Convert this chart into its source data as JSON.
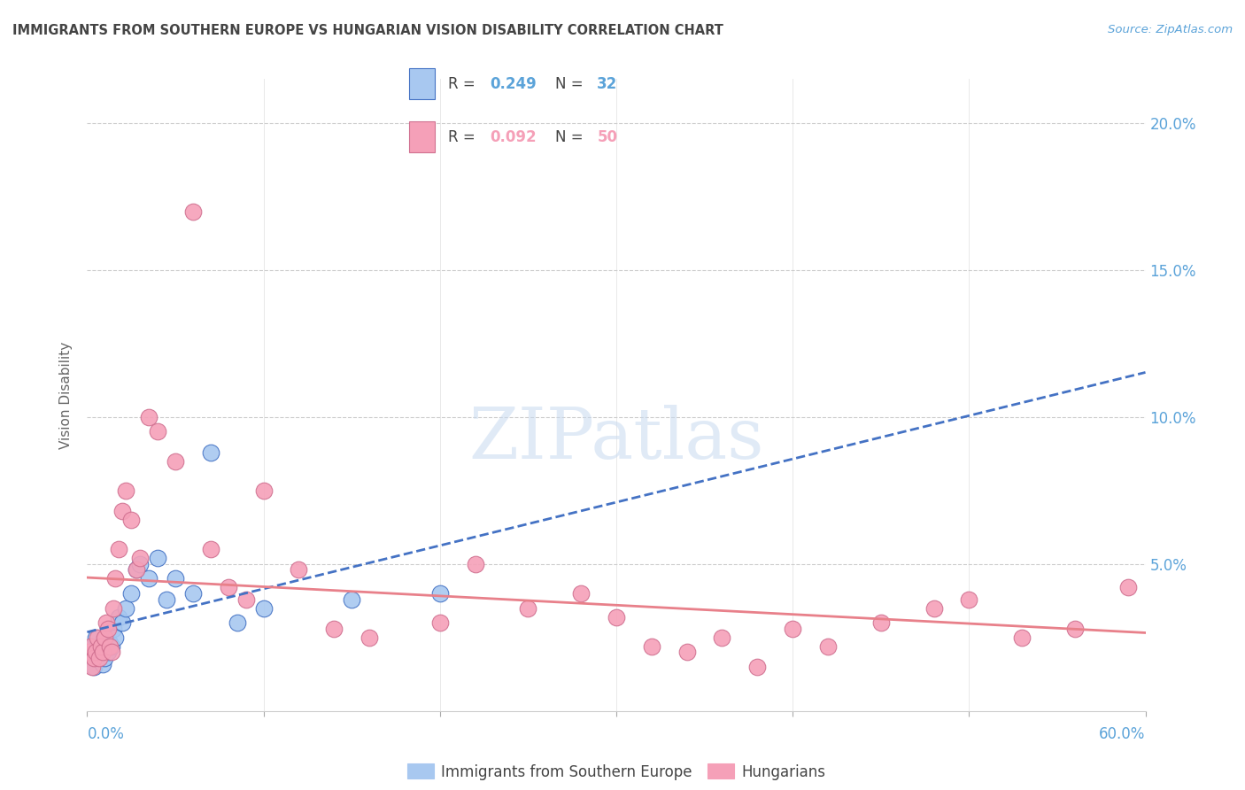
{
  "title": "IMMIGRANTS FROM SOUTHERN EUROPE VS HUNGARIAN VISION DISABILITY CORRELATION CHART",
  "source": "Source: ZipAtlas.com",
  "ylabel": "Vision Disability",
  "y_ticks": [
    0.0,
    0.05,
    0.1,
    0.15,
    0.2
  ],
  "y_tick_labels": [
    "",
    "5.0%",
    "10.0%",
    "15.0%",
    "20.0%"
  ],
  "xlim": [
    0.0,
    0.6
  ],
  "ylim": [
    0.0,
    0.215
  ],
  "legend_r1": "0.249",
  "legend_n1": "32",
  "legend_r2": "0.092",
  "legend_n2": "50",
  "blue_color": "#a8c8f0",
  "pink_color": "#f5a0b8",
  "blue_line_color": "#4472c4",
  "pink_line_color": "#e8808a",
  "axis_label_color": "#5ba3d9",
  "title_color": "#444444",
  "blue_points_x": [
    0.001,
    0.002,
    0.003,
    0.004,
    0.005,
    0.006,
    0.007,
    0.008,
    0.009,
    0.01,
    0.011,
    0.012,
    0.013,
    0.014,
    0.015,
    0.016,
    0.018,
    0.02,
    0.022,
    0.025,
    0.028,
    0.03,
    0.035,
    0.04,
    0.045,
    0.05,
    0.06,
    0.07,
    0.085,
    0.1,
    0.15,
    0.2
  ],
  "blue_points_y": [
    0.018,
    0.02,
    0.022,
    0.015,
    0.025,
    0.018,
    0.02,
    0.022,
    0.016,
    0.018,
    0.025,
    0.02,
    0.023,
    0.022,
    0.028,
    0.025,
    0.032,
    0.03,
    0.035,
    0.04,
    0.048,
    0.05,
    0.045,
    0.052,
    0.038,
    0.045,
    0.04,
    0.088,
    0.03,
    0.035,
    0.038,
    0.04
  ],
  "pink_points_x": [
    0.001,
    0.002,
    0.003,
    0.004,
    0.005,
    0.006,
    0.007,
    0.008,
    0.009,
    0.01,
    0.011,
    0.012,
    0.013,
    0.014,
    0.015,
    0.016,
    0.018,
    0.02,
    0.022,
    0.025,
    0.028,
    0.03,
    0.035,
    0.04,
    0.05,
    0.06,
    0.07,
    0.08,
    0.09,
    0.1,
    0.12,
    0.14,
    0.16,
    0.2,
    0.22,
    0.25,
    0.28,
    0.3,
    0.32,
    0.34,
    0.36,
    0.38,
    0.4,
    0.42,
    0.45,
    0.48,
    0.5,
    0.53,
    0.56,
    0.59
  ],
  "pink_points_y": [
    0.02,
    0.022,
    0.015,
    0.018,
    0.02,
    0.025,
    0.018,
    0.022,
    0.02,
    0.025,
    0.03,
    0.028,
    0.022,
    0.02,
    0.035,
    0.045,
    0.055,
    0.068,
    0.075,
    0.065,
    0.048,
    0.052,
    0.1,
    0.095,
    0.085,
    0.17,
    0.055,
    0.042,
    0.038,
    0.075,
    0.048,
    0.028,
    0.025,
    0.03,
    0.05,
    0.035,
    0.04,
    0.032,
    0.022,
    0.02,
    0.025,
    0.015,
    0.028,
    0.022,
    0.03,
    0.035,
    0.038,
    0.025,
    0.028,
    0.042
  ]
}
